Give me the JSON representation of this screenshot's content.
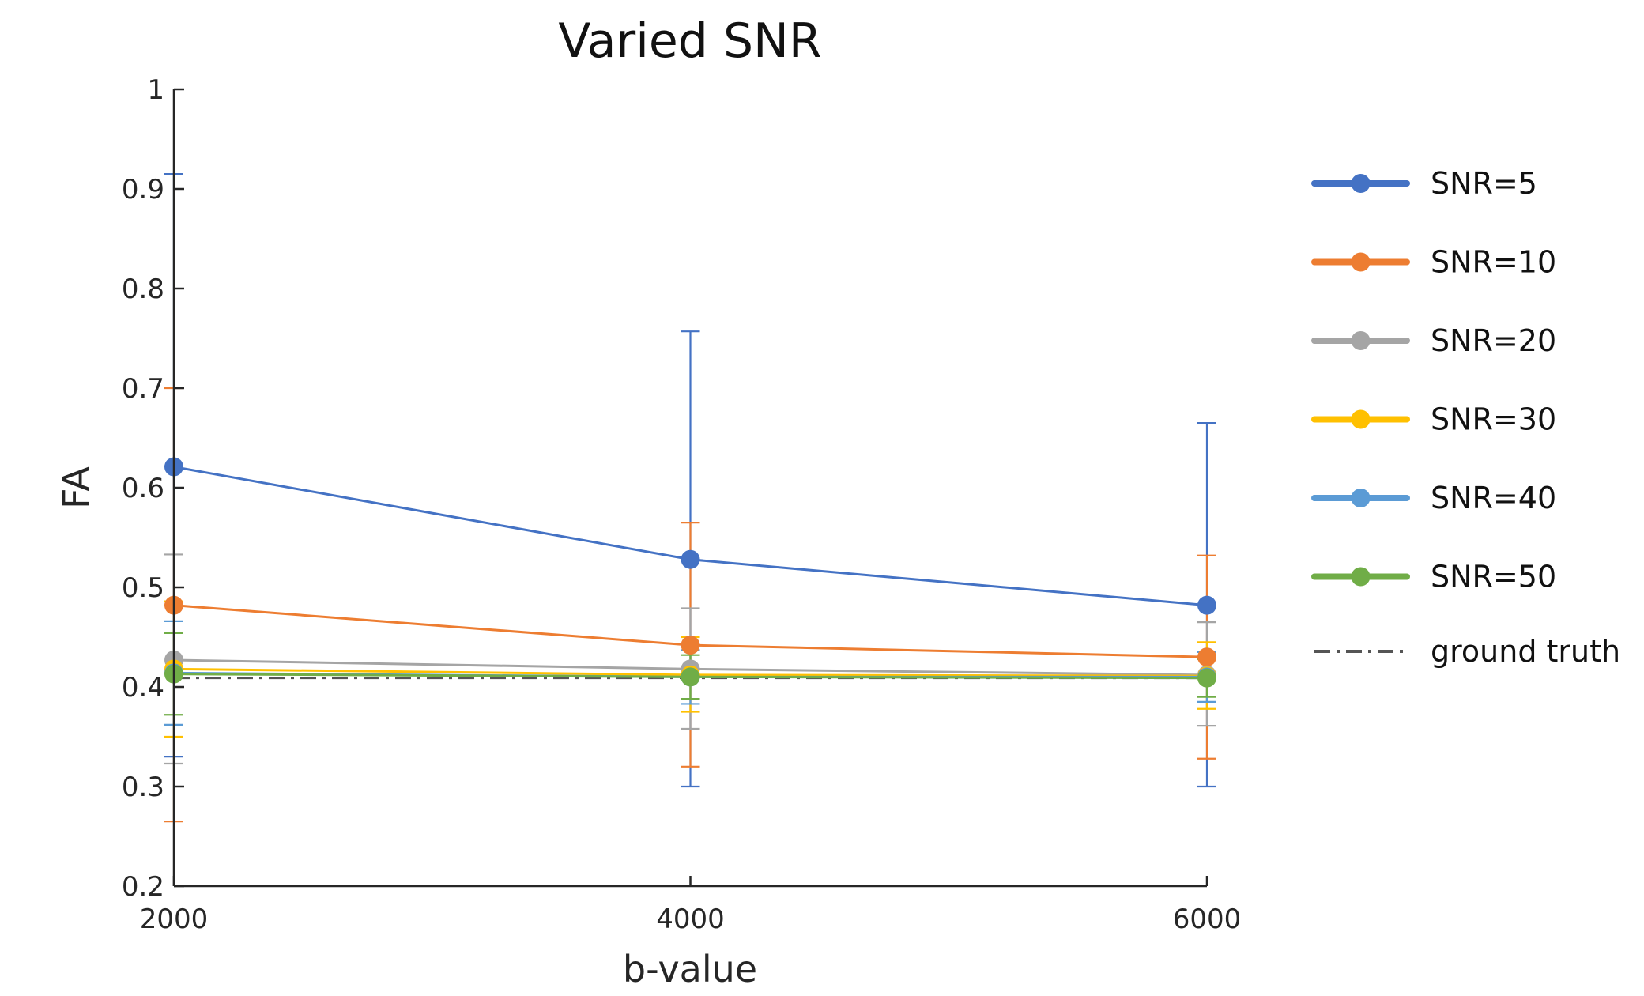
{
  "chart_data": {
    "type": "line",
    "title": "Varied SNR",
    "xlabel": "b-value",
    "ylabel": "FA",
    "x": [
      2000,
      4000,
      6000
    ],
    "xticks": [
      "2000",
      "4000",
      "6000"
    ],
    "ylim": [
      0.2,
      1
    ],
    "yticks": [
      "0.2",
      "0.3",
      "0.4",
      "0.5",
      "0.6",
      "0.7",
      "0.8",
      "0.9",
      "1"
    ],
    "grid": false,
    "legend_position": "right",
    "series": [
      {
        "name": "SNR=5",
        "color": "#4472C4",
        "values": [
          0.621,
          0.528,
          0.482
        ],
        "err_low": [
          0.33,
          0.3,
          0.3
        ],
        "err_high": [
          0.915,
          0.757,
          0.665
        ]
      },
      {
        "name": "SNR=10",
        "color": "#ED7D31",
        "values": [
          0.482,
          0.442,
          0.43
        ],
        "err_low": [
          0.265,
          0.32,
          0.328
        ],
        "err_high": [
          0.7,
          0.565,
          0.532
        ]
      },
      {
        "name": "SNR=20",
        "color": "#A5A5A5",
        "values": [
          0.427,
          0.418,
          0.412
        ],
        "err_low": [
          0.323,
          0.358,
          0.361
        ],
        "err_high": [
          0.533,
          0.479,
          0.465
        ]
      },
      {
        "name": "SNR=30",
        "color": "#FFC000",
        "values": [
          0.418,
          0.412,
          0.411
        ],
        "err_low": [
          0.35,
          0.375,
          0.378
        ],
        "err_high": [
          0.486,
          0.45,
          0.445
        ]
      },
      {
        "name": "SNR=40",
        "color": "#5B9BD5",
        "values": [
          0.414,
          0.41,
          0.41
        ],
        "err_low": [
          0.362,
          0.383,
          0.385
        ],
        "err_high": [
          0.466,
          0.437,
          0.435
        ]
      },
      {
        "name": "SNR=50",
        "color": "#70AD47",
        "values": [
          0.413,
          0.41,
          0.409
        ],
        "err_low": [
          0.372,
          0.388,
          0.39
        ],
        "err_high": [
          0.454,
          0.432,
          0.428
        ]
      }
    ],
    "reference_line": {
      "name": "ground truth",
      "value": 0.409,
      "color": "#555555"
    }
  }
}
